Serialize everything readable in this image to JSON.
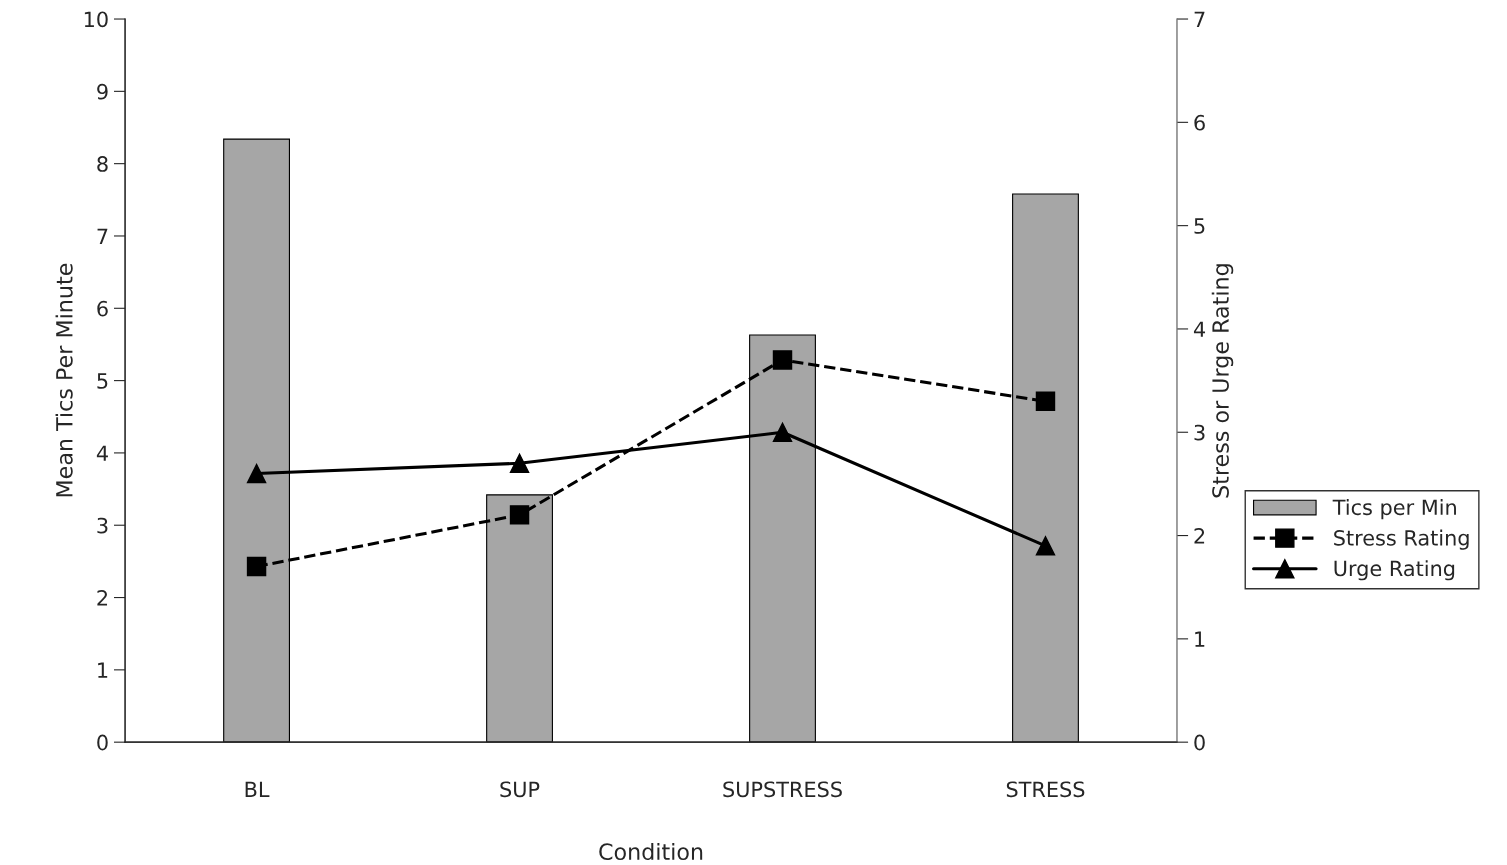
{
  "chart_data": {
    "type": "bar",
    "xlabel": "Condition",
    "ylabel": "Mean Tics Per Minute",
    "y2label": "Stress or Urge Rating",
    "categories": [
      "BL",
      "SUP",
      "SUPSTRESS",
      "STRESS"
    ],
    "series": [
      {
        "name": "Tics per Min",
        "color": "#a6a6a6",
        "values": [
          8.34,
          3.42,
          5.63,
          7.58
        ]
      },
      {
        "name": "Stress Rating",
        "type": "line",
        "axis": "y2",
        "color": "#000000",
        "marker": "square",
        "line_style": "dashed",
        "values": [
          1.7,
          2.2,
          3.7,
          3.3
        ]
      },
      {
        "name": "Urge Rating",
        "type": "line",
        "axis": "y2",
        "color": "#000000",
        "marker": "triangle",
        "line_style": "solid",
        "values": [
          2.6,
          2.7,
          3.0,
          1.9
        ]
      }
    ],
    "ylim": [
      0,
      10
    ],
    "yticks": [
      0,
      1,
      2,
      3,
      4,
      5,
      6,
      7,
      8,
      9,
      10
    ],
    "y2lim": [
      0,
      7
    ],
    "y2ticks": [
      0,
      1,
      2,
      3,
      4,
      5,
      6,
      7
    ],
    "grid": false,
    "legend": "right"
  }
}
